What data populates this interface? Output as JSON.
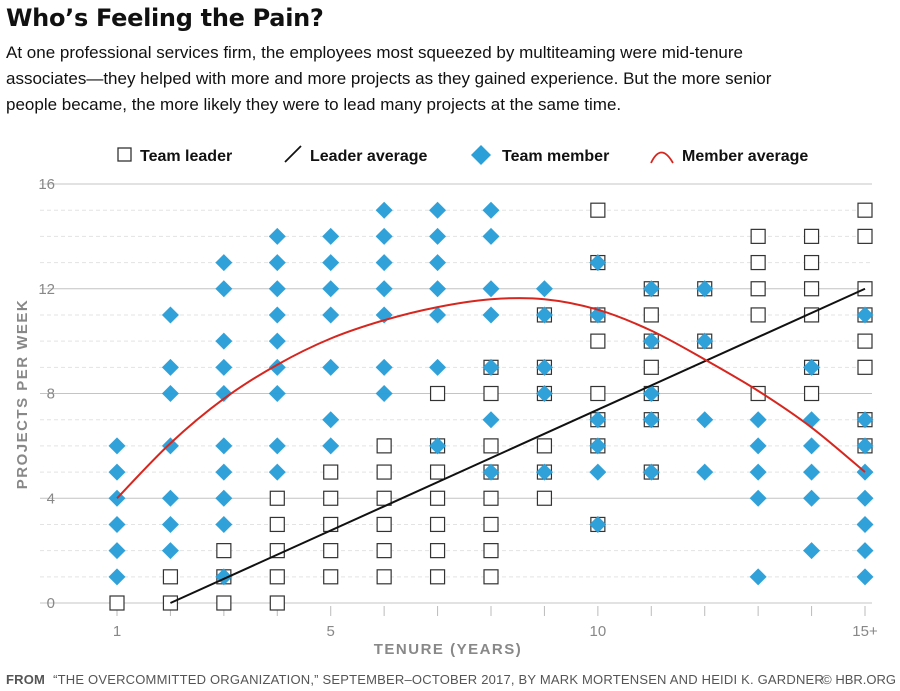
{
  "title": "Who’s Feeling the Pain?",
  "subtitle_lines": [
    "At one professional services firm, the employees most squeezed by multiteaming were mid-tenure",
    "associates—they helped with more and more projects as they gained experience. But the more senior",
    "people became, the more likely they were to lead many projects at the same time."
  ],
  "footer": {
    "label": "FROM",
    "text": "“THE OVERCOMMITTED ORGANIZATION,” SEPTEMBER–OCTOBER 2017, BY MARK MORTENSEN AND HEIDI K. GARDNER",
    "credit": "© HBR.ORG"
  },
  "colors": {
    "member": "#2a9fd8",
    "leader_stroke": "#333333",
    "member_avg": "#d7261e",
    "leader_avg": "#111111",
    "grid": "#cfcfcf",
    "axis_text": "#888888"
  },
  "chart_data": {
    "type": "scatter",
    "xlabel": "TENURE (YEARS)",
    "ylabel": "PROJECTS PER WEEK",
    "xlim": [
      1,
      15
    ],
    "ylim": [
      0,
      16
    ],
    "x_ticks": [
      1,
      5,
      10,
      15
    ],
    "x_tick_labels": [
      "1",
      "5",
      "10",
      "15+"
    ],
    "y_ticks": [
      0,
      4,
      8,
      12,
      16
    ],
    "y_tick_labels": [
      "0",
      "4",
      "8",
      "12",
      "16"
    ],
    "grid": true,
    "legend": [
      {
        "label": "Team leader",
        "marker": "square"
      },
      {
        "label": "Leader average",
        "marker": "line"
      },
      {
        "label": "Team member",
        "marker": "diamond"
      },
      {
        "label": "Member average",
        "marker": "curve"
      }
    ],
    "series": [
      {
        "name": "Team leader",
        "points": [
          [
            1,
            0
          ],
          [
            2,
            0
          ],
          [
            2,
            1
          ],
          [
            3,
            0
          ],
          [
            3,
            1
          ],
          [
            3,
            2
          ],
          [
            4,
            0
          ],
          [
            4,
            1
          ],
          [
            4,
            2
          ],
          [
            4,
            3
          ],
          [
            4,
            4
          ],
          [
            5,
            1
          ],
          [
            5,
            2
          ],
          [
            5,
            3
          ],
          [
            5,
            4
          ],
          [
            5,
            5
          ],
          [
            6,
            1
          ],
          [
            6,
            2
          ],
          [
            6,
            3
          ],
          [
            6,
            4
          ],
          [
            6,
            5
          ],
          [
            6,
            6
          ],
          [
            7,
            1
          ],
          [
            7,
            2
          ],
          [
            7,
            3
          ],
          [
            7,
            4
          ],
          [
            7,
            5
          ],
          [
            7,
            6
          ],
          [
            7,
            8
          ],
          [
            8,
            1
          ],
          [
            8,
            2
          ],
          [
            8,
            3
          ],
          [
            8,
            4
          ],
          [
            8,
            5
          ],
          [
            8,
            6
          ],
          [
            8,
            8
          ],
          [
            8,
            9
          ],
          [
            9,
            4
          ],
          [
            9,
            5
          ],
          [
            9,
            6
          ],
          [
            9,
            8
          ],
          [
            9,
            9
          ],
          [
            9,
            11
          ],
          [
            10,
            3
          ],
          [
            10,
            6
          ],
          [
            10,
            7
          ],
          [
            10,
            8
          ],
          [
            10,
            10
          ],
          [
            10,
            11
          ],
          [
            10,
            13
          ],
          [
            10,
            15
          ],
          [
            11,
            5
          ],
          [
            11,
            7
          ],
          [
            11,
            8
          ],
          [
            11,
            9
          ],
          [
            11,
            10
          ],
          [
            11,
            11
          ],
          [
            11,
            12
          ],
          [
            12,
            10
          ],
          [
            12,
            12
          ],
          [
            13,
            8
          ],
          [
            13,
            11
          ],
          [
            13,
            12
          ],
          [
            13,
            13
          ],
          [
            13,
            14
          ],
          [
            14,
            8
          ],
          [
            14,
            9
          ],
          [
            14,
            11
          ],
          [
            14,
            12
          ],
          [
            14,
            13
          ],
          [
            14,
            14
          ],
          [
            15,
            6
          ],
          [
            15,
            7
          ],
          [
            15,
            9
          ],
          [
            15,
            10
          ],
          [
            15,
            11
          ],
          [
            15,
            12
          ],
          [
            15,
            14
          ],
          [
            15,
            15
          ]
        ]
      },
      {
        "name": "Team member",
        "points": [
          [
            1,
            1
          ],
          [
            1,
            2
          ],
          [
            1,
            3
          ],
          [
            1,
            4
          ],
          [
            1,
            5
          ],
          [
            1,
            6
          ],
          [
            2,
            2
          ],
          [
            2,
            3
          ],
          [
            2,
            4
          ],
          [
            2,
            6
          ],
          [
            2,
            8
          ],
          [
            2,
            9
          ],
          [
            2,
            11
          ],
          [
            3,
            1
          ],
          [
            3,
            3
          ],
          [
            3,
            4
          ],
          [
            3,
            5
          ],
          [
            3,
            6
          ],
          [
            3,
            8
          ],
          [
            3,
            9
          ],
          [
            3,
            10
          ],
          [
            3,
            12
          ],
          [
            3,
            13
          ],
          [
            4,
            5
          ],
          [
            4,
            6
          ],
          [
            4,
            8
          ],
          [
            4,
            9
          ],
          [
            4,
            10
          ],
          [
            4,
            11
          ],
          [
            4,
            12
          ],
          [
            4,
            13
          ],
          [
            4,
            14
          ],
          [
            5,
            6
          ],
          [
            5,
            7
          ],
          [
            5,
            9
          ],
          [
            5,
            11
          ],
          [
            5,
            12
          ],
          [
            5,
            13
          ],
          [
            5,
            14
          ],
          [
            6,
            8
          ],
          [
            6,
            9
          ],
          [
            6,
            11
          ],
          [
            6,
            12
          ],
          [
            6,
            13
          ],
          [
            6,
            14
          ],
          [
            6,
            15
          ],
          [
            7,
            6
          ],
          [
            7,
            9
          ],
          [
            7,
            11
          ],
          [
            7,
            12
          ],
          [
            7,
            13
          ],
          [
            7,
            14
          ],
          [
            7,
            15
          ],
          [
            8,
            5
          ],
          [
            8,
            7
          ],
          [
            8,
            9
          ],
          [
            8,
            11
          ],
          [
            8,
            12
          ],
          [
            8,
            14
          ],
          [
            8,
            15
          ],
          [
            9,
            5
          ],
          [
            9,
            8
          ],
          [
            9,
            9
          ],
          [
            9,
            11
          ],
          [
            9,
            12
          ],
          [
            10,
            3
          ],
          [
            10,
            5
          ],
          [
            10,
            6
          ],
          [
            10,
            7
          ],
          [
            10,
            11
          ],
          [
            10,
            13
          ],
          [
            11,
            5
          ],
          [
            11,
            7
          ],
          [
            11,
            8
          ],
          [
            11,
            10
          ],
          [
            11,
            12
          ],
          [
            12,
            5
          ],
          [
            12,
            7
          ],
          [
            12,
            10
          ],
          [
            12,
            12
          ],
          [
            13,
            1
          ],
          [
            13,
            4
          ],
          [
            13,
            5
          ],
          [
            13,
            6
          ],
          [
            13,
            7
          ],
          [
            14,
            2
          ],
          [
            14,
            4
          ],
          [
            14,
            5
          ],
          [
            14,
            6
          ],
          [
            14,
            7
          ],
          [
            14,
            9
          ],
          [
            15,
            1
          ],
          [
            15,
            2
          ],
          [
            15,
            3
          ],
          [
            15,
            4
          ],
          [
            15,
            5
          ],
          [
            15,
            6
          ],
          [
            15,
            7
          ],
          [
            15,
            11
          ]
        ]
      }
    ],
    "leader_average": {
      "x": [
        2,
        15
      ],
      "y": [
        0,
        12
      ]
    },
    "member_average": {
      "x": [
        1,
        2,
        3,
        4,
        5,
        6,
        7,
        8,
        9,
        10,
        11,
        12,
        13,
        14,
        15
      ],
      "y": [
        4.0,
        6.1,
        7.8,
        9.1,
        10.1,
        10.8,
        11.3,
        11.6,
        11.6,
        11.2,
        10.4,
        9.3,
        8.1,
        6.7,
        5.0
      ]
    }
  }
}
